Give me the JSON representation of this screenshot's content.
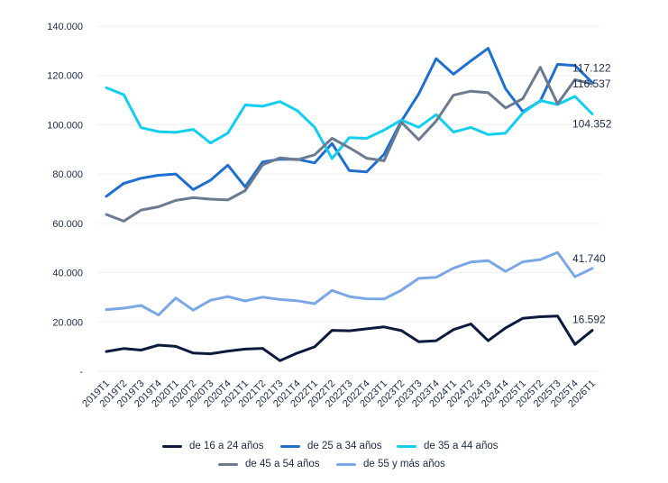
{
  "chart_data": {
    "type": "line",
    "title": "",
    "xlabel": "",
    "ylabel": "",
    "ylim": [
      0,
      140000
    ],
    "y_ticks": [
      "-",
      "20.000",
      "40.000",
      "60.000",
      "80.000",
      "100.000",
      "120.000",
      "140.000"
    ],
    "grid": "horizontal",
    "legend_position": "bottom",
    "categories": [
      "2019T1",
      "2019T2",
      "2019T3",
      "2019T4",
      "2020T1",
      "2020T2",
      "2020T3",
      "2020T4",
      "2021T1",
      "2021T2",
      "2021T3",
      "2021T4",
      "2022T1",
      "2022T2",
      "2022T3",
      "2022T4",
      "2023T1",
      "2023T2",
      "2023T3",
      "2023T4",
      "2024T1",
      "2024T2",
      "2024T3",
      "2024T4",
      "2025T1",
      "2025T2",
      "2025T3",
      "2025T4",
      "2026T1"
    ],
    "series": [
      {
        "name": "de 16 a 24 años",
        "color": "#0d1a3f",
        "values": [
          8000,
          9200,
          8600,
          10600,
          10100,
          7400,
          7100,
          8200,
          9000,
          9300,
          4300,
          7400,
          9900,
          16600,
          16400,
          17200,
          18000,
          16500,
          12000,
          12400,
          16900,
          19200,
          12400,
          17600,
          21500,
          22100,
          22400,
          10900,
          16592
        ],
        "end_label": "16.592"
      },
      {
        "name": "de 25 a 34 años",
        "color": "#1f6fd0",
        "values": [
          71000,
          76200,
          78300,
          79500,
          80000,
          73700,
          77500,
          83600,
          74800,
          84900,
          86000,
          86000,
          84500,
          92400,
          81400,
          80900,
          88000,
          101500,
          112500,
          126800,
          120500,
          125900,
          131000,
          114600,
          105300,
          109600,
          124500,
          124000,
          117122
        ],
        "end_label": "117.122"
      },
      {
        "name": "de 35 a 44 años",
        "color": "#11cdf0",
        "values": [
          115000,
          112200,
          98800,
          97200,
          96900,
          98100,
          92600,
          96600,
          108000,
          107500,
          109400,
          105700,
          99000,
          86300,
          94800,
          94500,
          97800,
          101900,
          99000,
          104100,
          97000,
          98900,
          96000,
          96600,
          104800,
          109800,
          108200,
          111500,
          104352
        ],
        "end_label": "104.352"
      },
      {
        "name": "de 45 a 54 años",
        "color": "#6b7a8f",
        "values": [
          63600,
          60900,
          65400,
          66700,
          69300,
          70400,
          69800,
          69500,
          73300,
          83700,
          86600,
          85800,
          87800,
          94500,
          90700,
          86400,
          85400,
          101000,
          93900,
          101500,
          112000,
          113600,
          113000,
          106800,
          110600,
          123300,
          108500,
          118300,
          116537
        ],
        "end_label": "116.537"
      },
      {
        "name": "de 55 y más años",
        "color": "#7aa7e6",
        "values": [
          25000,
          25600,
          26700,
          22800,
          29700,
          24800,
          28800,
          30300,
          28500,
          30100,
          29100,
          28600,
          27400,
          32800,
          30300,
          29400,
          29300,
          32900,
          37700,
          38100,
          41800,
          44300,
          44900,
          40500,
          44400,
          45300,
          48200,
          38300,
          41740
        ],
        "end_label": "41.740"
      }
    ]
  }
}
